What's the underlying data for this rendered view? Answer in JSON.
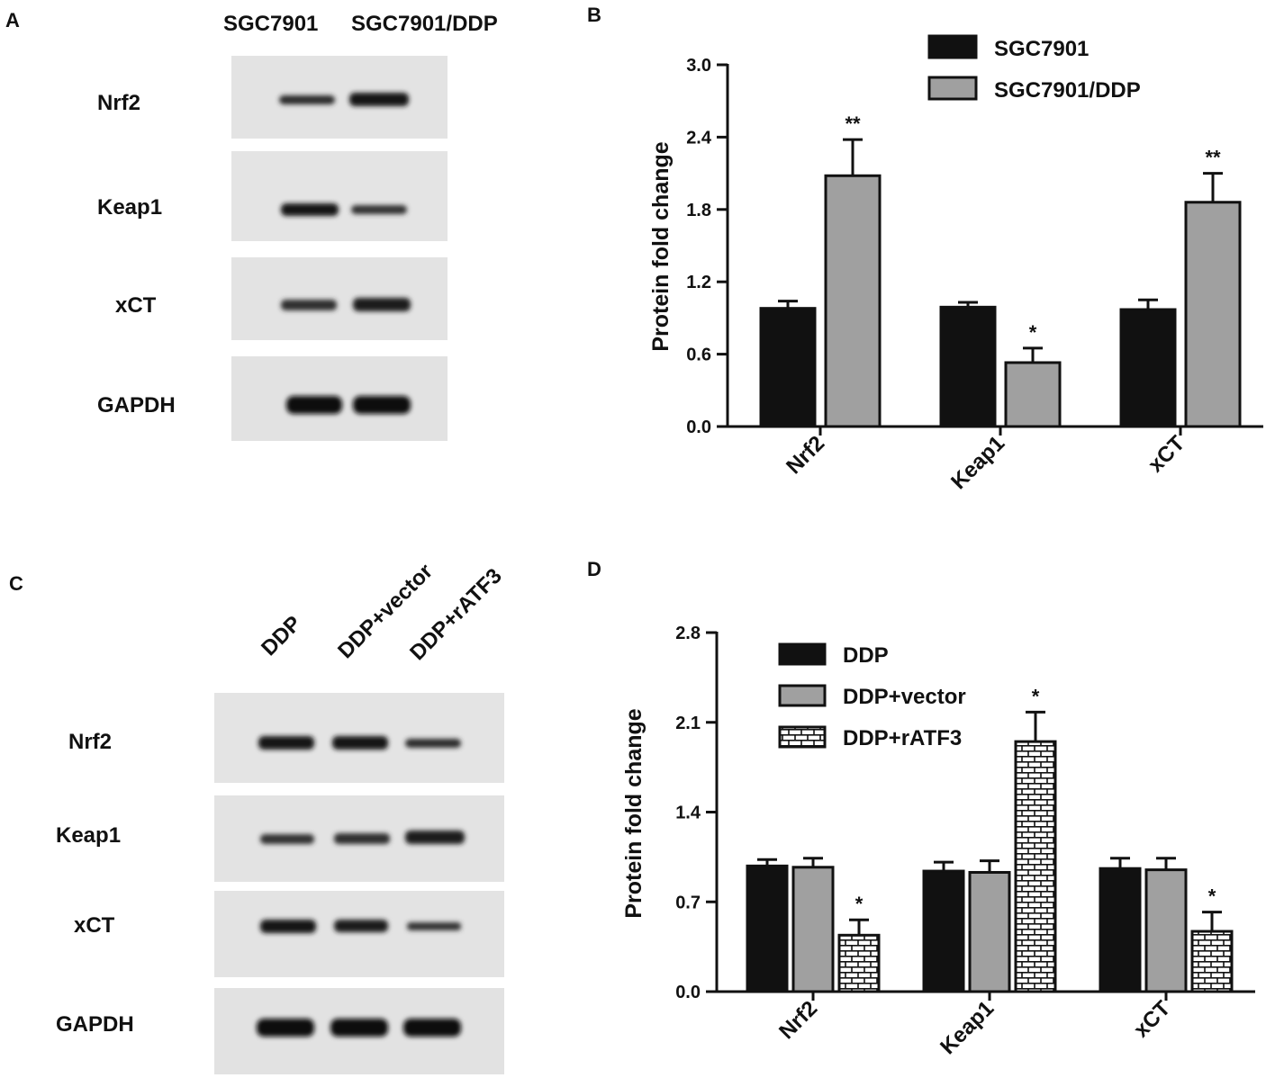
{
  "panels": {
    "a": "A",
    "b": "B",
    "c": "C",
    "d": "D"
  },
  "blot_a": {
    "lanes": [
      "SGC7901",
      "SGC7901/DDP"
    ],
    "proteins": [
      "Nrf2",
      "Keap1",
      "xCT",
      "GAPDH"
    ]
  },
  "blot_c": {
    "lanes": [
      "DDP",
      "DDP+vector",
      "DDP+rATF3"
    ],
    "proteins": [
      "Nrf2",
      "Keap1",
      "xCT",
      "GAPDH"
    ]
  },
  "colors": {
    "black": "#111111",
    "gray": "#a0a0a0",
    "brick": "#ffffff"
  },
  "chart_data": [
    {
      "type": "bar",
      "panel": "B",
      "title": "",
      "xlabel": "",
      "ylabel": "Protein fold change",
      "categories": [
        "Nrf2",
        "Keap1",
        "xCT"
      ],
      "ylim": [
        0,
        3.0
      ],
      "yticks": [
        "0.0",
        "0.6",
        "1.2",
        "1.8",
        "2.4",
        "3.0"
      ],
      "legend_position": "top-right",
      "series": [
        {
          "name": "SGC7901",
          "fill": "black",
          "values": [
            0.98,
            0.99,
            0.97
          ],
          "errors": [
            0.06,
            0.04,
            0.08
          ],
          "annotations": [
            "",
            "",
            ""
          ]
        },
        {
          "name": "SGC7901/DDP",
          "fill": "gray",
          "values": [
            2.08,
            0.53,
            1.86
          ],
          "errors": [
            0.3,
            0.12,
            0.24
          ],
          "annotations": [
            "**",
            "*",
            "**"
          ]
        }
      ]
    },
    {
      "type": "bar",
      "panel": "D",
      "title": "",
      "xlabel": "",
      "ylabel": "Protein fold change",
      "categories": [
        "Nrf2",
        "Keap1",
        "xCT"
      ],
      "ylim": [
        0,
        2.8
      ],
      "yticks": [
        "0.0",
        "0.7",
        "1.4",
        "2.1",
        "2.8"
      ],
      "legend_position": "top-left",
      "series": [
        {
          "name": "DDP",
          "fill": "black",
          "values": [
            0.98,
            0.94,
            0.96
          ],
          "errors": [
            0.05,
            0.07,
            0.08
          ],
          "annotations": [
            "",
            "",
            ""
          ]
        },
        {
          "name": "DDP+vector",
          "fill": "gray",
          "values": [
            0.97,
            0.93,
            0.95
          ],
          "errors": [
            0.07,
            0.09,
            0.09
          ],
          "annotations": [
            "",
            "",
            ""
          ]
        },
        {
          "name": "DDP+rATF3",
          "fill": "brick",
          "values": [
            0.44,
            1.95,
            0.47
          ],
          "errors": [
            0.12,
            0.23,
            0.15
          ],
          "annotations": [
            "*",
            "*",
            "*"
          ]
        }
      ]
    }
  ]
}
